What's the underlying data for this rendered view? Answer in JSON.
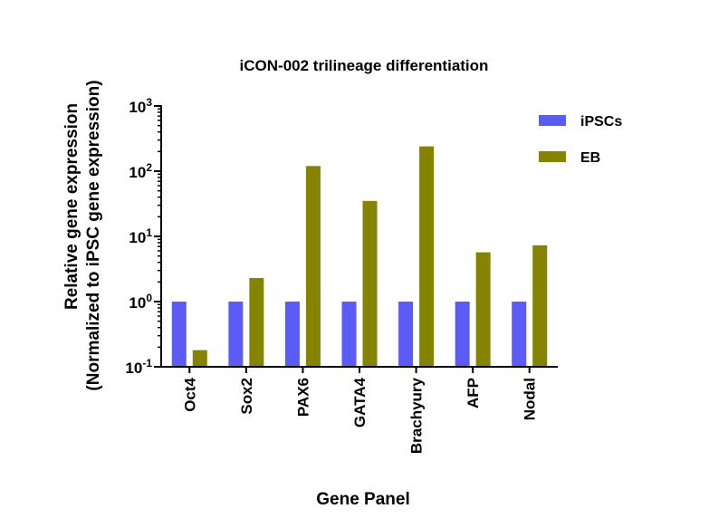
{
  "chart_data": {
    "type": "bar",
    "scale": "log10",
    "title": "iCON-002 trilineage differentiation",
    "xlabel": "Gene Panel",
    "ylabel_line1": "Relative gene expression",
    "ylabel_line2": "(Normalized to iPSC gene expression)",
    "ylim": [
      0.1,
      1000
    ],
    "y_ticks": [
      {
        "base": "10",
        "exp": "3",
        "value": 1000
      },
      {
        "base": "10",
        "exp": "2",
        "value": 100
      },
      {
        "base": "10",
        "exp": "1",
        "value": 10
      },
      {
        "base": "10",
        "exp": "0",
        "value": 1
      },
      {
        "base": "10",
        "exp": "-1",
        "value": 0.1
      }
    ],
    "categories": [
      "Oct4",
      "Sox2",
      "PAX6",
      "GATA4",
      "Brachyury",
      "AFP",
      "Nodal"
    ],
    "series": [
      {
        "name": "iPSCs",
        "color": "#5b5bf5",
        "values": [
          1,
          1,
          1,
          1,
          1,
          1,
          1
        ]
      },
      {
        "name": "EB",
        "color": "#848400",
        "values": [
          0.18,
          2.3,
          120,
          35,
          240,
          5.7,
          7.3
        ]
      }
    ],
    "legend_position": "top-right"
  }
}
